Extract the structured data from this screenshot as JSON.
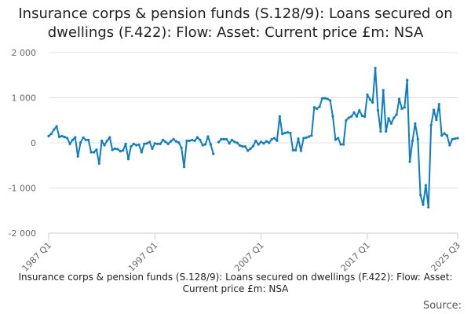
{
  "chart_data": {
    "type": "line",
    "title": "Insurance corps & pension funds (S.128/9): Loans secured on dwellings (F.422): Flow: Asset: Current price £m: NSA",
    "xlabel": "Insurance corps & pension funds (S.128/9): Loans secured on dwellings (F.422): Flow: Asset: Current price £m: NSA",
    "source_label": "Source:",
    "x_start": "1987 Q1",
    "x_end": "2025 Q3",
    "x_ticks": [
      {
        "label": "1987 Q1",
        "index": 0
      },
      {
        "label": "1997 Q1",
        "index": 40
      },
      {
        "label": "2007 Q1",
        "index": 80
      },
      {
        "label": "2017 Q1",
        "index": 120
      },
      {
        "label": "2025 Q3",
        "index": 154
      }
    ],
    "y_ticks": [
      {
        "label": "2 000",
        "value": 2000
      },
      {
        "label": "1 000",
        "value": 1000
      },
      {
        "label": "0",
        "value": 0
      },
      {
        "label": "-1 000",
        "value": -1000
      },
      {
        "label": "-2 000",
        "value": -2000
      }
    ],
    "ylim": [
      -2000,
      2000
    ],
    "grid": true,
    "line_color": "#0f7dc2",
    "values": [
      150,
      200,
      295,
      365,
      133,
      150,
      128,
      104,
      -23,
      64,
      122,
      -300,
      6,
      116,
      64,
      64,
      -209,
      -209,
      -150,
      -458,
      46,
      -52,
      46,
      122,
      -156,
      -128,
      -140,
      -185,
      -168,
      -23,
      -360,
      -81,
      -23,
      -52,
      -40,
      -209,
      -23,
      -12,
      23,
      -128,
      -12,
      -23,
      -23,
      64,
      23,
      -23,
      35,
      81,
      35,
      6,
      -110,
      -533,
      46,
      46,
      64,
      46,
      122,
      64,
      -52,
      -35,
      139,
      -35,
      -243,
      null,
      17,
      81,
      81,
      81,
      -12,
      64,
      23,
      0,
      -58,
      -81,
      -81,
      -174,
      -128,
      -70,
      46,
      -35,
      23,
      -12,
      35,
      0,
      81,
      104,
      46,
      586,
      197,
      220,
      232,
      220,
      -162,
      -162,
      93,
      -174,
      104,
      116,
      139,
      162,
      788,
      759,
      800,
      985,
      991,
      974,
      939,
      586,
      70,
      104,
      -35,
      -35,
      499,
      557,
      586,
      672,
      586,
      719,
      603,
      580,
      1067,
      962,
      893,
      1658,
      719,
      255,
      1165,
      255,
      545,
      429,
      557,
      626,
      974,
      759,
      788,
      1391,
      -417,
      46,
      429,
      81,
      -1154,
      -1368,
      -939,
      -1426,
      394,
      730,
      510,
      858,
      162,
      209,
      162,
      -52,
      81,
      93,
      104
    ]
  }
}
